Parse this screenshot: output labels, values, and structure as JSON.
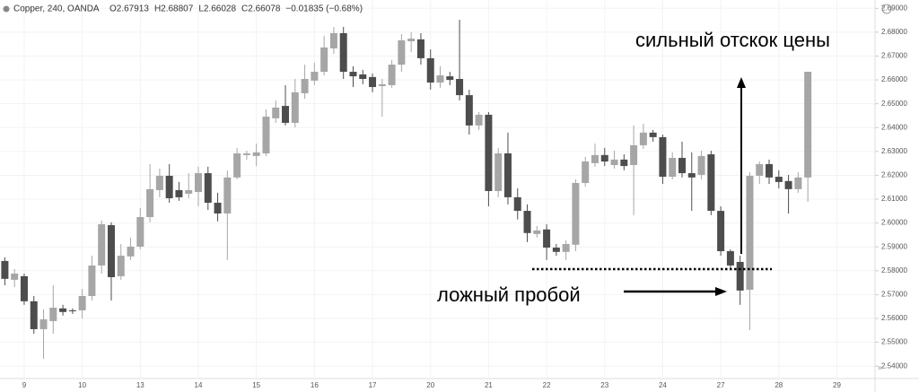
{
  "chart_data": {
    "type": "candlestick",
    "title": "Copper, 240, OANDA",
    "header": [
      "O2.67913",
      "H2.68807",
      "L2.66028",
      "C2.66078",
      "−0.01835 (−0.68%)"
    ],
    "annotations": [
      "сильный отскок цены",
      "ложный пробой"
    ],
    "support_level": 2.5807,
    "up_color": "#a6a6a6",
    "down_color": "#4d4d4d",
    "grid": true,
    "ylim": [
      2.5348,
      2.6935
    ],
    "yticks": [
      {
        "value": 2.54,
        "label": "2.54000"
      },
      {
        "value": 2.55,
        "label": "2.55000"
      },
      {
        "value": 2.56,
        "label": "2.56000"
      },
      {
        "value": 2.57,
        "label": "2.57000"
      },
      {
        "value": 2.58,
        "label": "2.58000"
      },
      {
        "value": 2.59,
        "label": "2.59000"
      },
      {
        "value": 2.6,
        "label": "2.60000"
      },
      {
        "value": 2.61,
        "label": "2.61000"
      },
      {
        "value": 2.62,
        "label": "2.62000"
      },
      {
        "value": 2.63,
        "label": "2.63000"
      },
      {
        "value": 2.64,
        "label": "2.64000"
      },
      {
        "value": 2.65,
        "label": "2.65000"
      },
      {
        "value": 2.66,
        "label": "2.66000"
      },
      {
        "value": 2.67,
        "label": "2.67000"
      },
      {
        "value": 2.68,
        "label": "2.68000"
      },
      {
        "value": 2.69,
        "label": "2.69000"
      }
    ],
    "categories": [
      null,
      null,
      "9",
      null,
      null,
      null,
      null,
      null,
      "10",
      null,
      null,
      null,
      null,
      null,
      "13",
      null,
      null,
      null,
      null,
      null,
      "14",
      null,
      null,
      null,
      null,
      null,
      "15",
      null,
      null,
      null,
      null,
      null,
      "16",
      null,
      null,
      null,
      null,
      null,
      "17",
      null,
      null,
      null,
      null,
      null,
      "20",
      null,
      null,
      null,
      null,
      null,
      "21",
      null,
      null,
      null,
      null,
      null,
      "22",
      null,
      null,
      null,
      null,
      null,
      "23",
      null,
      null,
      null,
      null,
      null,
      "24",
      null,
      null,
      null,
      null,
      null,
      "27",
      null,
      null,
      null,
      null,
      null,
      "28",
      null,
      null,
      null,
      null,
      null,
      "29",
      null,
      null,
      null
    ],
    "open": [
      2.5841,
      2.5762,
      2.5777,
      2.5672,
      2.5555,
      2.5589,
      2.5642,
      2.5634,
      2.5634,
      2.5694,
      2.5822,
      2.5991,
      2.5777,
      2.586,
      2.5901,
      2.6025,
      2.6138,
      2.6198,
      2.6138,
      2.6123,
      2.613,
      2.6209,
      2.6085,
      2.604,
      2.6191,
      2.6285,
      2.6281,
      2.6292,
      2.6439,
      2.6491,
      2.642,
      2.6544,
      2.6597,
      2.6634,
      2.6732,
      2.6796,
      2.6634,
      2.6623,
      2.6612,
      2.6574,
      2.6578,
      2.6664,
      2.6762,
      2.677,
      2.6691,
      2.6589,
      2.6615,
      2.6604,
      2.6536,
      2.6409,
      2.6454,
      2.6134,
      2.6292,
      2.6108,
      2.6051,
      2.5954,
      2.5973,
      2.5897,
      2.5879,
      2.5909,
      2.6168,
      2.6251,
      2.6285,
      2.6243,
      2.6266,
      2.6243,
      2.6326,
      2.6379,
      2.636,
      2.6194,
      2.6273,
      2.6209,
      2.6202,
      2.6288,
      2.6051,
      2.5882,
      2.5837,
      2.572,
      2.6198,
      2.6247,
      2.6194,
      2.6176,
      2.6142,
      2.6191,
      null,
      null,
      null,
      null,
      null,
      null
    ],
    "high": [
      2.5856,
      2.5807,
      2.5788,
      2.5694,
      2.5638,
      2.5739,
      2.5657,
      2.5642,
      2.5724,
      2.5863,
      2.6011,
      2.6003,
      2.5912,
      2.5939,
      2.6063,
      2.6247,
      2.6228,
      2.6247,
      2.6172,
      2.6209,
      2.6236,
      2.6236,
      2.6127,
      2.6221,
      2.6315,
      2.6303,
      2.6333,
      2.6476,
      2.6514,
      2.6578,
      2.6604,
      2.6664,
      2.6672,
      2.6785,
      2.6822,
      2.6822,
      2.6657,
      2.6642,
      2.6627,
      2.6604,
      2.6683,
      2.6792,
      2.68,
      2.6796,
      2.6728,
      2.6657,
      2.6634,
      2.6852,
      2.6559,
      2.6465,
      2.6465,
      2.6315,
      2.6379,
      2.6145,
      2.6078,
      2.5988,
      2.5995,
      2.5912,
      2.5927,
      2.6183,
      2.6277,
      2.6333,
      2.6315,
      2.6303,
      2.6288,
      2.6409,
      2.6416,
      2.639,
      2.6371,
      2.6296,
      2.6341,
      2.6296,
      2.6303,
      2.6303,
      2.607,
      2.589,
      2.5863,
      2.6213,
      2.6258,
      2.6266,
      2.6221,
      2.6202,
      2.6213,
      2.6634,
      null,
      null,
      null,
      null,
      null,
      null
    ],
    "low": [
      2.5739,
      2.5732,
      2.5657,
      2.5536,
      2.5431,
      2.5536,
      2.5612,
      2.5619,
      2.56,
      2.5675,
      2.5788,
      2.5675,
      2.5762,
      2.5845,
      2.589,
      2.6003,
      2.6108,
      2.6085,
      2.6093,
      2.6104,
      2.607,
      2.6055,
      2.6007,
      2.5845,
      2.6183,
      2.6266,
      2.6239,
      2.6281,
      2.642,
      2.6409,
      2.6401,
      2.6521,
      2.6578,
      2.6619,
      2.6709,
      2.6604,
      2.657,
      2.6582,
      2.6548,
      2.6446,
      2.6567,
      2.6634,
      2.6717,
      2.6664,
      2.6559,
      2.6567,
      2.6578,
      2.6514,
      2.6371,
      2.639,
      2.607,
      2.6108,
      2.6078,
      2.6015,
      2.592,
      2.5939,
      2.5845,
      2.5863,
      2.5845,
      2.5882,
      2.6153,
      2.6236,
      2.6239,
      2.6228,
      2.6221,
      2.6033,
      2.6311,
      2.6341,
      2.6164,
      2.6183,
      2.6191,
      2.6051,
      2.6183,
      2.6033,
      2.5863,
      2.5807,
      2.5657,
      2.5551,
      2.6164,
      2.6164,
      2.6145,
      2.604,
      2.6127,
      2.6089,
      null,
      null,
      null,
      null,
      null,
      null
    ],
    "close": [
      2.5766,
      2.5788,
      2.5672,
      2.5555,
      2.5596,
      2.5645,
      2.5627,
      2.563,
      2.5694,
      2.5822,
      2.5995,
      2.5773,
      2.5863,
      2.5901,
      2.6025,
      2.6142,
      2.6198,
      2.6104,
      2.6108,
      2.6138,
      2.6209,
      2.6085,
      2.604,
      2.6191,
      2.6292,
      2.6292,
      2.6296,
      2.6446,
      2.6484,
      2.642,
      2.6548,
      2.6604,
      2.6634,
      2.6736,
      2.6796,
      2.6634,
      2.6615,
      2.6604,
      2.657,
      2.6582,
      2.6664,
      2.6766,
      2.6773,
      2.6691,
      2.6589,
      2.6619,
      2.66,
      2.6536,
      2.6409,
      2.6454,
      2.6134,
      2.6292,
      2.6108,
      2.6051,
      2.5958,
      2.5969,
      2.5897,
      2.5879,
      2.5912,
      2.6168,
      2.6258,
      2.6285,
      2.6258,
      2.6266,
      2.6239,
      2.6326,
      2.6379,
      2.636,
      2.6194,
      2.6273,
      2.6209,
      2.6191,
      2.6281,
      2.6051,
      2.5882,
      2.5822,
      2.5717,
      2.6198,
      2.6247,
      2.6191,
      2.6172,
      2.6142,
      2.6191,
      2.6634,
      null,
      null,
      null,
      null,
      null,
      null
    ]
  }
}
